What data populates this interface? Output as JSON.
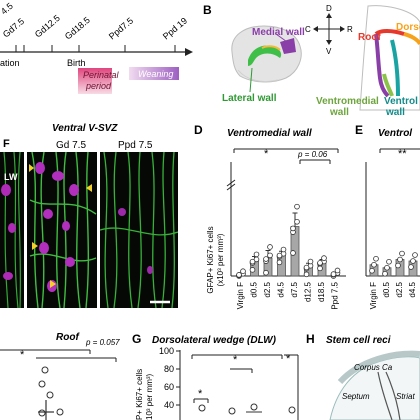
{
  "timeline": {
    "ticks": [
      "4.5",
      "Gd7.5",
      "Gd12.5",
      "Gd18.5",
      "Ppd7.5",
      "Ppd 19"
    ],
    "left_label": "ation",
    "birth": "Birth",
    "perinatal": "Perinatal\nperiod",
    "weaning": "Weaning"
  },
  "panel_b": {
    "letter": "B",
    "medial_wall": "Medial wall",
    "lateral_wall": "Lateral wall",
    "compass": {
      "up": "D",
      "down": "V",
      "left": "C",
      "right": "R"
    },
    "roof": "Roof",
    "dorsal": "Dorsol",
    "ventromedial": "Ventromedial\nwall",
    "ventrolateral": "Ventrol\nwall"
  },
  "panel_f": {
    "letter": "F",
    "title": "Ventral V-SVZ",
    "col1": "Gd 7.5",
    "col2": "Ppd 7.5",
    "lw": "LW"
  },
  "panel_d": {
    "letter": "D",
    "title": "Ventromedial wall",
    "sig": "*",
    "pvalue": "p = 0.06",
    "ylabel1": "GFAP+ Ki67+ cells",
    "ylabel2": "(x10³ per mm³)",
    "colors": {
      "bar": "#a7a7a7",
      "bar_stroke": "#555555",
      "dot": "#ffffff"
    },
    "chart_data": {
      "type": "bar",
      "categories": [
        "Virgin F",
        "d0.5",
        "d2.5",
        "d4.5",
        "d7.5",
        "d12.5",
        "d18.5",
        "Ppd 7.5"
      ],
      "values": [
        2,
        20,
        24,
        28,
        66,
        12,
        18,
        3
      ],
      "errors": [
        2,
        6,
        10,
        5,
        18,
        5,
        4,
        2
      ],
      "ylim": [
        0,
        150
      ]
    }
  },
  "panel_e": {
    "letter": "E",
    "title": "Ventrol",
    "sig": "**",
    "categories": [
      "Virgin F",
      "d0.5",
      "d2.5",
      "d4.5"
    ],
    "values": [
      15,
      11,
      22,
      20
    ]
  },
  "panel_roof": {
    "title": "Roof",
    "sig": "*",
    "pvalue": "p = 0.057"
  },
  "panel_g": {
    "letter": "G",
    "title": "Dorsolateral wedge (DLW)",
    "ylabel": "P+ Ki67+ cells\n10³ per mm³)",
    "ticks": [
      "100",
      "80",
      "60",
      "40"
    ],
    "sig": "*"
  },
  "panel_h": {
    "letter": "H",
    "title": "Stem cell reci",
    "corpus": "Corpus Ca",
    "septum": "Septum",
    "striat": "Striat"
  }
}
